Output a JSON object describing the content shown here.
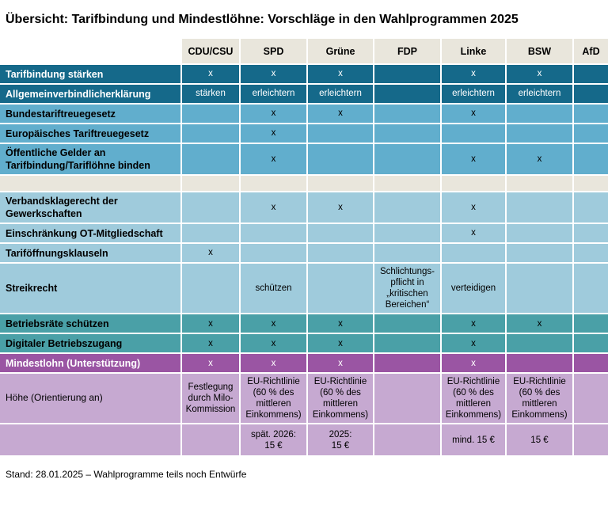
{
  "title": "Übersicht: Tarifbindung und Mindestlöhne: Vorschläge in den Wahlprogrammen 2025",
  "footer": "Stand: 28.01.2025 – Wahlprogramme teils noch Entwürfe",
  "colors": {
    "header_bg": "#e9e6dc",
    "separator_bg": "#e9e6dc",
    "dark_teal": "#15698a",
    "medium_blue": "#61aecd",
    "light_blue": "#9fcbdc",
    "teal_green": "#4aa0a7",
    "purple": "#9a55a3",
    "light_purple": "#c6a9d1",
    "grid_line": "#ffffff"
  },
  "chart_data": {
    "type": "table",
    "title": "Übersicht: Tarifbindung und Mindestlöhne: Vorschläge in den Wahlprogrammen 2025",
    "columns": [
      "",
      "CDU/CSU",
      "SPD",
      "Grüne",
      "FDP",
      "Linke",
      "BSW",
      "AfD"
    ],
    "rows": [
      {
        "label": "Tarifbindung stärken",
        "style": "dark-teal",
        "cells": [
          "x",
          "x",
          "x",
          "",
          "x",
          "x",
          ""
        ]
      },
      {
        "label": "Allgemeinverbindlicherklärung",
        "style": "dark-teal",
        "cells": [
          "stärken",
          "erleichtern",
          "erleichtern",
          "",
          "erleichtern",
          "erleichtern",
          ""
        ]
      },
      {
        "label": "Bundestariftreuegesetz",
        "style": "medium-blue",
        "cells": [
          "",
          "x",
          "x",
          "",
          "x",
          "",
          ""
        ]
      },
      {
        "label": "Europäisches Tariftreuegesetz",
        "style": "medium-blue",
        "cells": [
          "",
          "x",
          "",
          "",
          "",
          "",
          ""
        ]
      },
      {
        "label": "Öffentliche Gelder an\nTarifbindung/Tariflöhne binden",
        "style": "medium-blue",
        "cells": [
          "",
          "x",
          "",
          "",
          "x",
          "x",
          ""
        ]
      },
      {
        "label": "",
        "style": "separator",
        "cells": [
          "",
          "",
          "",
          "",
          "",
          "",
          ""
        ]
      },
      {
        "label": "Verbandsklagerecht der\nGewerkschaften",
        "style": "light-blue",
        "cells": [
          "",
          "x",
          "x",
          "",
          "x",
          "",
          ""
        ]
      },
      {
        "label": "Einschränkung OT-Mitgliedschaft",
        "style": "light-blue",
        "cells": [
          "",
          "",
          "",
          "",
          "x",
          "",
          ""
        ]
      },
      {
        "label": "Tariföffnungsklauseln",
        "style": "light-blue",
        "cells": [
          "x",
          "",
          "",
          "",
          "",
          "",
          ""
        ]
      },
      {
        "label": "Streikrecht",
        "style": "light-blue",
        "cells": [
          "",
          "schützen",
          "",
          "Schlichtungs-\npflicht in\n„kritischen\nBereichen“",
          "verteidigen",
          "",
          ""
        ]
      },
      {
        "label": "Betriebsräte schützen",
        "style": "teal-green",
        "cells": [
          "x",
          "x",
          "x",
          "",
          "x",
          "x",
          ""
        ]
      },
      {
        "label": "Digitaler Betriebszugang",
        "style": "teal-green",
        "cells": [
          "x",
          "x",
          "x",
          "",
          "x",
          "",
          ""
        ]
      },
      {
        "label": "Mindestlohn (Unterstützung)",
        "style": "purple",
        "cells": [
          "x",
          "x",
          "x",
          "",
          "x",
          "",
          ""
        ]
      },
      {
        "label": "Höhe (Orientierung an)",
        "style": "light-purple",
        "cells": [
          "Festlegung\ndurch Milo-\nKommission",
          "EU-Richtlinie\n(60 % des\nmittleren\nEinkommens)",
          "EU-Richtlinie\n(60 % des\nmittleren\nEinkommens)",
          "",
          "EU-Richtlinie\n(60 % des\nmittleren\nEinkommens)",
          "EU-Richtlinie\n(60 % des\nmittleren\nEinkommens)",
          ""
        ]
      },
      {
        "label": "",
        "style": "light-purple",
        "cells": [
          "",
          "spät. 2026:\n15 €",
          "2025:\n15 €",
          "",
          "mind. 15 €",
          "15 €",
          ""
        ]
      }
    ]
  }
}
